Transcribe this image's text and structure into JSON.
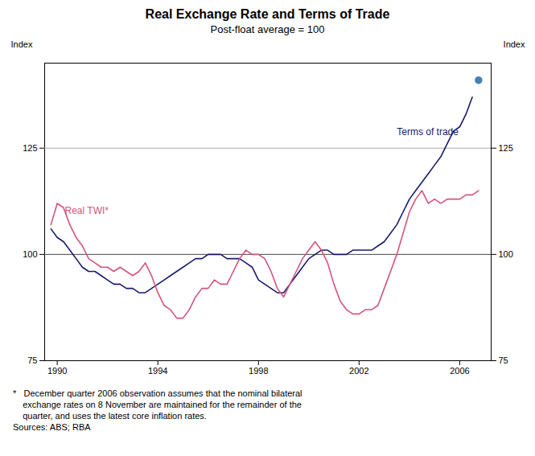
{
  "chart_data": {
    "type": "line",
    "title": "Real Exchange Rate and Terms of Trade",
    "subtitle": "Post-float average = 100",
    "ylabel": "Index",
    "y2label": "Index",
    "xlim": [
      1989.5,
      2007.25
    ],
    "xticks": [
      1990,
      1994,
      1998,
      2002,
      2006
    ],
    "ylim": [
      75,
      145
    ],
    "yticks": [
      75,
      100,
      125
    ],
    "y2lim": [
      75,
      145
    ],
    "y2ticks": [
      75,
      100,
      125
    ],
    "grid": false,
    "series": [
      {
        "name": "Terms of trade",
        "color": "#1a1a6e",
        "x": [
          1989.75,
          1990.0,
          1990.25,
          1990.5,
          1990.75,
          1991.0,
          1991.25,
          1991.5,
          1991.75,
          1992.0,
          1992.25,
          1992.5,
          1992.75,
          1993.0,
          1993.25,
          1993.5,
          1993.75,
          1994.0,
          1994.25,
          1994.5,
          1994.75,
          1995.0,
          1995.25,
          1995.5,
          1995.75,
          1996.0,
          1996.25,
          1996.5,
          1996.75,
          1997.0,
          1997.25,
          1997.5,
          1997.75,
          1998.0,
          1998.25,
          1998.5,
          1998.75,
          1999.0,
          1999.25,
          1999.5,
          1999.75,
          2000.0,
          2000.25,
          2000.5,
          2000.75,
          2001.0,
          2001.25,
          2001.5,
          2001.75,
          2002.0,
          2002.25,
          2002.5,
          2002.75,
          2003.0,
          2003.25,
          2003.5,
          2003.75,
          2004.0,
          2004.25,
          2004.5,
          2004.75,
          2005.0,
          2005.25,
          2005.5,
          2005.75,
          2006.0,
          2006.25,
          2006.5
        ],
        "values": [
          106,
          104,
          103,
          101,
          99,
          97,
          96,
          96,
          95,
          94,
          93,
          93,
          92,
          92,
          91,
          91,
          92,
          93,
          94,
          95,
          96,
          97,
          98,
          99,
          99,
          100,
          100,
          100,
          99,
          99,
          99,
          98,
          97,
          94,
          93,
          92,
          91,
          91,
          93,
          95,
          97,
          99,
          100,
          101,
          101,
          100,
          100,
          100,
          101,
          101,
          101,
          101,
          102,
          103,
          105,
          107,
          110,
          113,
          115,
          117,
          119,
          121,
          123,
          126,
          129,
          130,
          133,
          137
        ]
      },
      {
        "name": "Real TWI*",
        "color": "#d4547a",
        "x": [
          1989.75,
          1990.0,
          1990.25,
          1990.5,
          1990.75,
          1991.0,
          1991.25,
          1991.5,
          1991.75,
          1992.0,
          1992.25,
          1992.5,
          1992.75,
          1993.0,
          1993.25,
          1993.5,
          1993.75,
          1994.0,
          1994.25,
          1994.5,
          1994.75,
          1995.0,
          1995.25,
          1995.5,
          1995.75,
          1996.0,
          1996.25,
          1996.5,
          1996.75,
          1997.0,
          1997.25,
          1997.5,
          1997.75,
          1998.0,
          1998.25,
          1998.5,
          1998.75,
          1999.0,
          1999.25,
          1999.5,
          1999.75,
          2000.0,
          2000.25,
          2000.5,
          2000.75,
          2001.0,
          2001.25,
          2001.5,
          2001.75,
          2002.0,
          2002.25,
          2002.5,
          2002.75,
          2003.0,
          2003.25,
          2003.5,
          2003.75,
          2004.0,
          2004.25,
          2004.5,
          2004.75,
          2005.0,
          2005.25,
          2005.5,
          2005.75,
          2006.0,
          2006.25,
          2006.5,
          2006.75
        ],
        "values": [
          107,
          112,
          111,
          107,
          104,
          102,
          99,
          98,
          97,
          97,
          96,
          97,
          96,
          95,
          96,
          98,
          95,
          91,
          88,
          87,
          85,
          85,
          87,
          90,
          92,
          92,
          94,
          93,
          93,
          96,
          99,
          101,
          100,
          100,
          99,
          96,
          92,
          90,
          93,
          96,
          99,
          101,
          103,
          101,
          98,
          93,
          89,
          87,
          86,
          86,
          87,
          87,
          88,
          92,
          96,
          100,
          105,
          110,
          113,
          115,
          112,
          113,
          112,
          113,
          113,
          113,
          114,
          114,
          115
        ]
      },
      {
        "type": "scatter",
        "marker": "circle",
        "color": "#4682B4",
        "x": [
          2006.75
        ],
        "values": [
          141
        ]
      }
    ],
    "reference_lines": [
      {
        "y": 100,
        "color": "#444444"
      },
      {
        "y": 125,
        "color": "#aaaaaa"
      }
    ],
    "annotations": [
      {
        "text": "Terms of trade",
        "x": 2003.5,
        "y": 128,
        "color": "#1a1a6e"
      },
      {
        "text": "Real TWI*",
        "x": 1990.3,
        "y": 109.5,
        "color": "#d4547a"
      }
    ],
    "notes": [
      "*   December quarter 2006 observation assumes that the nominal bilateral\n    exchange rates on 8 November are maintained for the remainder of the\n    quarter, and uses the latest core inflation rates.",
      "Sources: ABS; RBA"
    ]
  }
}
